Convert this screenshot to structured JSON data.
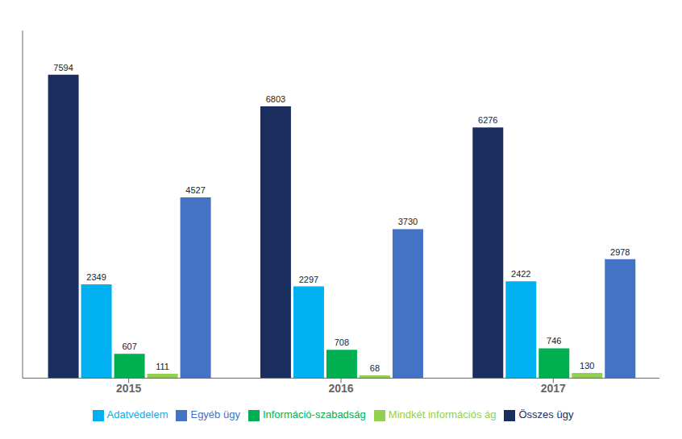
{
  "chart_data": {
    "type": "bar",
    "categories": [
      "2015",
      "2016",
      "2017"
    ],
    "series": [
      {
        "name": "Összes ügy",
        "color": "#1b2d5e",
        "values": [
          7594,
          6803,
          6276
        ]
      },
      {
        "name": "Adatvédelem",
        "color": "#00b0f0",
        "values": [
          2349,
          2297,
          2422
        ]
      },
      {
        "name": "Információ-szabadság",
        "color": "#00b050",
        "values": [
          607,
          708,
          746
        ]
      },
      {
        "name": "Mindkét információs ág",
        "color": "#92d050",
        "values": [
          111,
          68,
          130
        ]
      },
      {
        "name": "Egyéb ügy",
        "color": "#4472c4",
        "values": [
          4527,
          3730,
          2978
        ]
      }
    ],
    "ylim": [
      0,
      8700
    ],
    "grid": false,
    "legend": "bottom",
    "data_labels": true,
    "tick_labels": "x"
  }
}
